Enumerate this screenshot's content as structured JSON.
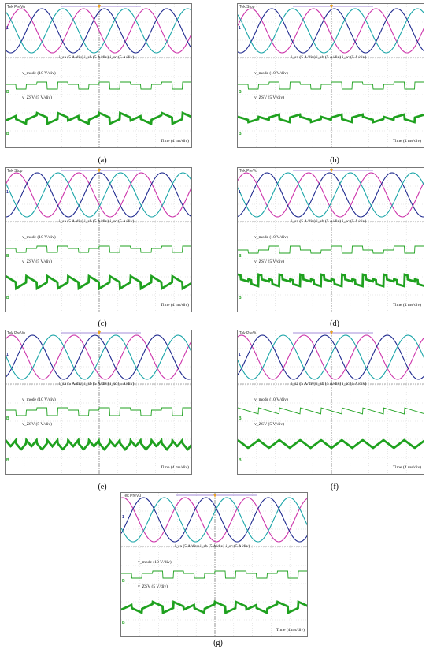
{
  "colors": {
    "ia": "#cc33aa",
    "ib": "#1f2a8f",
    "ic": "#1aa5a8",
    "volt": "#1fa11f",
    "grid": "#c8c8c8",
    "trig": "#e8a020"
  },
  "panels": [
    {
      "id": "a",
      "header": "Tek PreVu",
      "caption": "(a)",
      "current_label": "i_sa (5 A/div) i_sb (5 A/div) i_sc (5 A/div)",
      "vmode_label": "v_mode (10 V/div)",
      "vzsv_label": "v_ZSV (5 V/div)",
      "time_label": "Time (4 ms/div)",
      "chart_data": {
        "type": "line",
        "x_unit": "ms",
        "x_range": [
          0,
          40
        ],
        "current_period_ms": 13.3,
        "vzsv_shape": "square",
        "vzsv_ripple_div": 0.4
      }
    },
    {
      "id": "b",
      "header": "Tek Stop",
      "caption": "(b)",
      "current_label": "i_sa (5 A/div) i_sb (5 A/div) i_sc (5 A/div)",
      "vmode_label": "v_mode (10 V/div)",
      "vzsv_label": "v_ZSV (5 V/div)",
      "time_label": "Time (4 ms/div)",
      "chart_data": {
        "type": "line",
        "x_unit": "ms",
        "x_range": [
          0,
          40
        ],
        "current_period_ms": 13.3,
        "vzsv_shape": "stepped-square",
        "vzsv_ripple_div": 0.3
      }
    },
    {
      "id": "c",
      "header": "Tek Stop",
      "caption": "(c)",
      "current_label": "i_sa (5 A/div) i_sb (5 A/div) i_sc (5 A/div)",
      "vmode_label": "v_mode (10 V/div)",
      "vzsv_label": "v_ZSV (5 V/div)",
      "time_label": "Time (4 ms/div)",
      "chart_data": {
        "type": "line",
        "x_unit": "ms",
        "x_range": [
          0,
          40
        ],
        "current_period_ms": 13.3,
        "vzsv_shape": "square-large",
        "vzsv_ripple_div": 0.5
      }
    },
    {
      "id": "d",
      "header": "Tek PreVu",
      "caption": "(d)",
      "current_label": "i_sa (5 A/div) i_sb (5 A/div) i_sc (5 A/div)",
      "vmode_label": "v_mode (10 V/div)",
      "vzsv_label": "v_ZSV (5 V/div)",
      "time_label": "Time (4 ms/div)",
      "chart_data": {
        "type": "line",
        "x_unit": "ms",
        "x_range": [
          0,
          40
        ],
        "current_period_ms": 13.3,
        "vzsv_shape": "pulsed",
        "vzsv_ripple_div": 0.3
      }
    },
    {
      "id": "e",
      "header": "Tek PreVu",
      "caption": "(e)",
      "current_label": "i_sa (5 A/div) i_sb (5 A/div) i_sc (5 A/div)",
      "vmode_label": "v_mode (10 V/div)",
      "vzsv_label": "v_ZSV (5 V/div)",
      "time_label": "Time (4 ms/div)",
      "chart_data": {
        "type": "line",
        "x_unit": "ms",
        "x_range": [
          0,
          40
        ],
        "current_period_ms": 13.3,
        "vzsv_shape": "triangle",
        "vzsv_ripple_div": 0.35
      }
    },
    {
      "id": "f",
      "header": "Tek PreVu",
      "caption": "(f)",
      "current_label": "i_sa (5 A/div) i_sb (5 A/div) i_sc (5 A/div)",
      "vmode_label": "v_mode (10 V/div)",
      "vzsv_label": "v_ZSV (5 V/div)",
      "time_label": "Time (4 ms/div)",
      "chart_data": {
        "type": "line",
        "x_unit": "ms",
        "x_range": [
          0,
          40
        ],
        "current_period_ms": 13.3,
        "vzsv_shape": "sawtooth",
        "vzsv_ripple_div": 0.35
      }
    },
    {
      "id": "g",
      "header": "Tek PreVu",
      "caption": "(g)",
      "current_label": "i_sa (5 A/div) i_sb (5 A/div) i_sc (5 A/div)",
      "vmode_label": "v_mode (10 V/div)",
      "vzsv_label": "v_ZSV (5 V/div)",
      "time_label": "Time (4 ms/div)",
      "chart_data": {
        "type": "line",
        "x_unit": "ms",
        "x_range": [
          0,
          40
        ],
        "current_period_ms": 13.3,
        "vzsv_shape": "square",
        "vzsv_ripple_div": 0.35
      }
    }
  ]
}
